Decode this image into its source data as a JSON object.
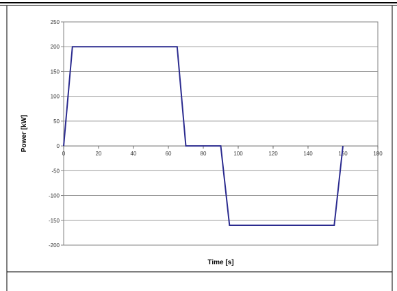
{
  "chart_data": {
    "type": "line",
    "title": "",
    "xlabel": "Time [s]",
    "ylabel": "Power [kW]",
    "xlim": [
      0,
      180
    ],
    "ylim": [
      -200,
      250
    ],
    "x_ticks": [
      0,
      20,
      40,
      60,
      80,
      100,
      120,
      140,
      160,
      180
    ],
    "y_ticks": [
      250,
      200,
      150,
      100,
      50,
      0,
      -50,
      -100,
      -150,
      -200
    ],
    "grid": "horizontal",
    "legend": "none",
    "series": [
      {
        "color": "#2b2b8f",
        "x": [
          0,
          5,
          65,
          70,
          90,
          95,
          155,
          160
        ],
        "y": [
          0,
          200,
          200,
          0,
          0,
          -160,
          -160,
          0
        ]
      }
    ]
  },
  "colors": {
    "grid": "#9a9a9a",
    "plot_border": "#808080",
    "frame": "#000000",
    "line": "#2b2b8f"
  }
}
